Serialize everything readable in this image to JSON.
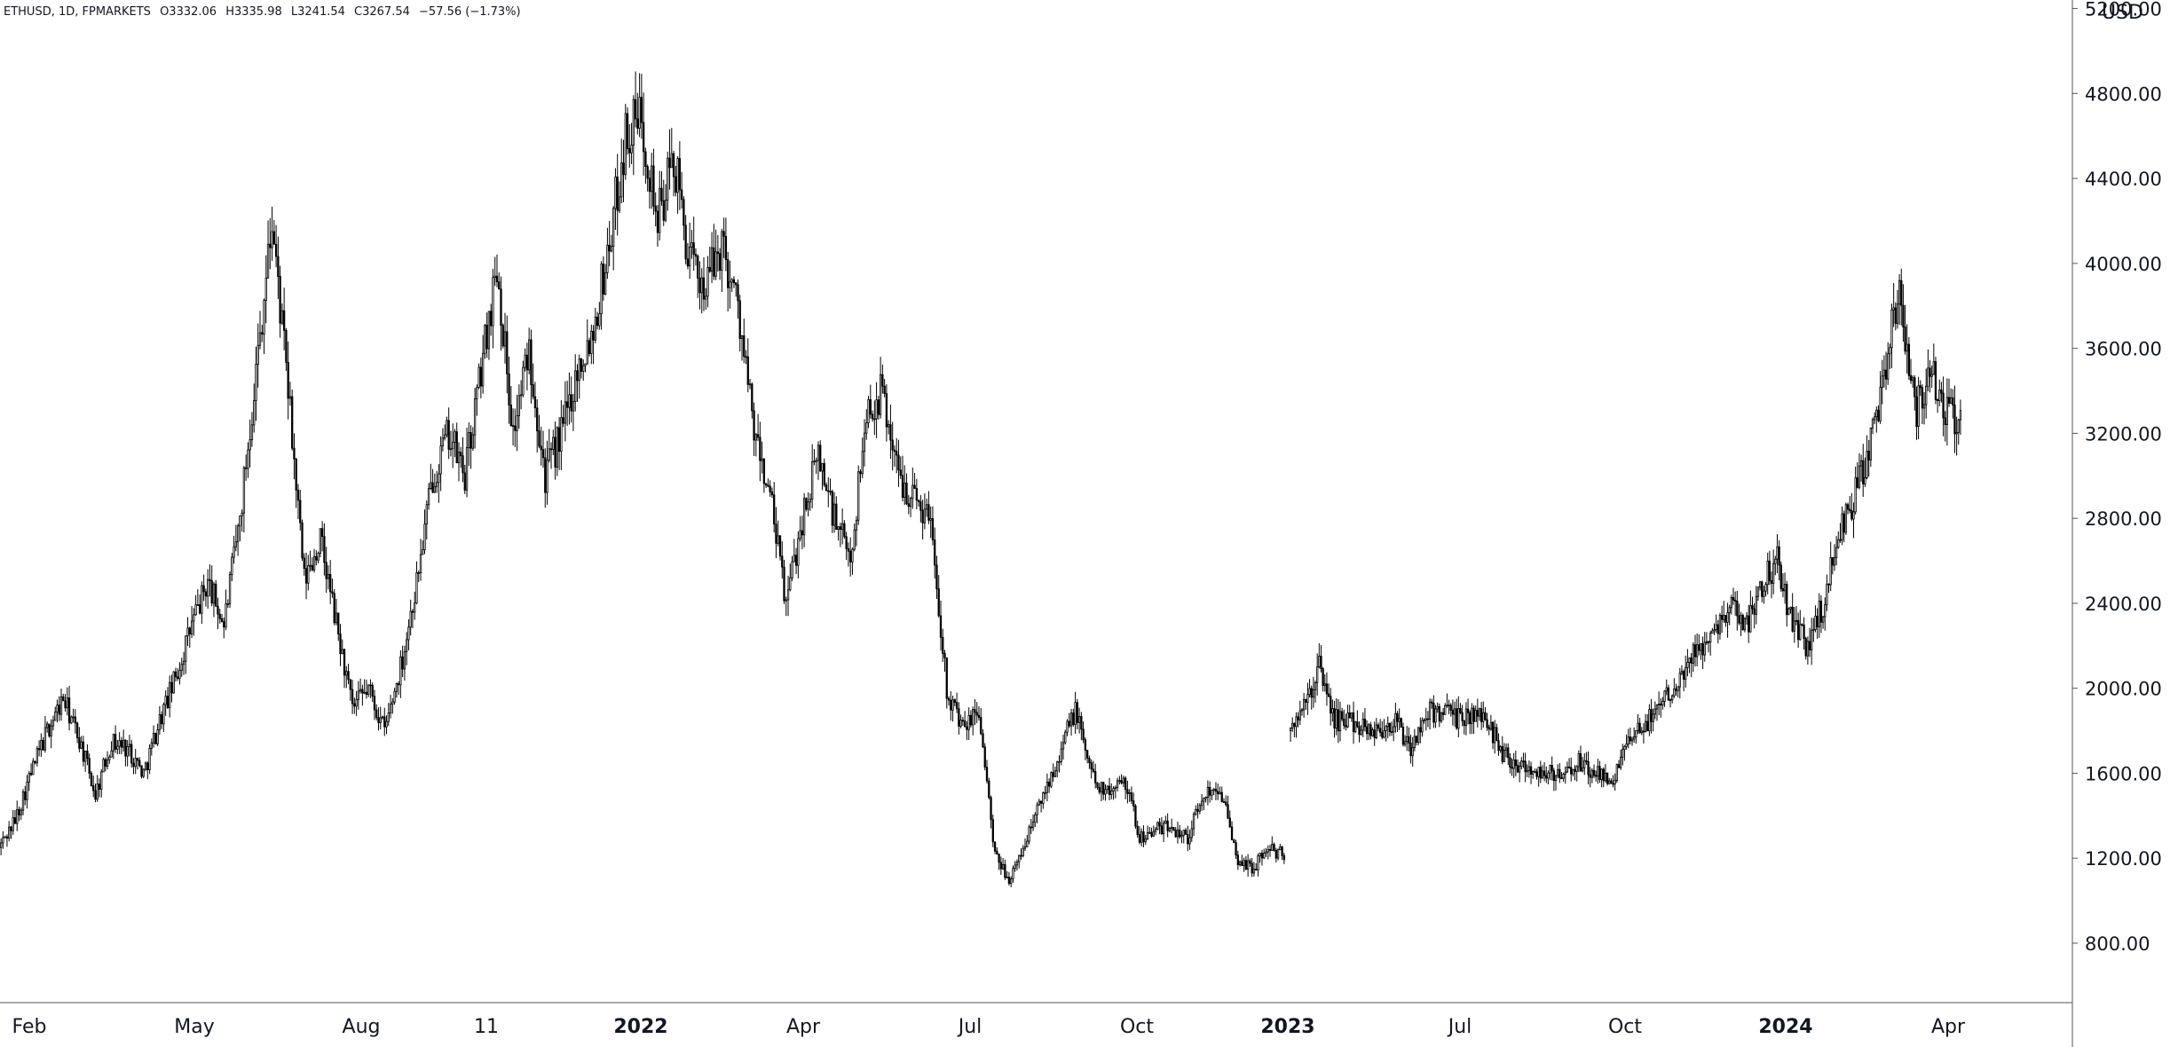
{
  "legend": {
    "symbol": "ETHUSD, 1D, FPMARKETS",
    "open": "O3332.06",
    "high": "H3335.98",
    "low": "L3241.54",
    "close": "C3267.54",
    "change": "−57.56 (−1.73%)"
  },
  "currency": "USD",
  "colors": {
    "background": "#ffffff",
    "candle_body": "#000000",
    "candle_wick": "#000000",
    "axis_line": "#555555",
    "text": "#131722"
  },
  "chart_data": {
    "type": "candlestick",
    "title": "",
    "xlabel": "",
    "ylabel": "",
    "ylim": [
      520,
      5240
    ],
    "y_ticks": [
      "800.00",
      "1200.00",
      "1600.00",
      "2000.00",
      "2400.00",
      "2800.00",
      "3200.00",
      "3600.00",
      "4000.00",
      "4400.00",
      "4800.00",
      "5200.00"
    ],
    "x_ticks": [
      {
        "label": "Feb",
        "bold": false
      },
      {
        "label": "May",
        "bold": false
      },
      {
        "label": "Aug",
        "bold": false
      },
      {
        "label": "11",
        "bold": false
      },
      {
        "label": "2022",
        "bold": true
      },
      {
        "label": "Apr",
        "bold": false
      },
      {
        "label": "Jul",
        "bold": false
      },
      {
        "label": "Oct",
        "bold": false
      },
      {
        "label": "2023",
        "bold": true
      },
      {
        "label": "Jul",
        "bold": false
      },
      {
        "label": "Oct",
        "bold": false
      },
      {
        "label": "2024",
        "bold": true
      },
      {
        "label": "Apr",
        "bold": false
      }
    ],
    "grid": false,
    "series": [
      {
        "segment": "2021-02 to 2022-12",
        "closes": [
          1250,
          1380,
          1600,
          1800,
          1950,
          1760,
          1500,
          1750,
          1720,
          1600,
          1850,
          2050,
          2300,
          2500,
          2300,
          2800,
          3500,
          4200,
          3400,
          2500,
          2700,
          2300,
          1900,
          2000,
          1800,
          2100,
          2500,
          3000,
          3200,
          3000,
          3500,
          4000,
          3200,
          3600,
          3000,
          3200,
          3500,
          3700,
          4100,
          4600,
          4700,
          4200,
          4500,
          4000,
          3900,
          4100,
          3800,
          3200,
          2900,
          2400,
          2800,
          3100,
          2800,
          2600,
          3300,
          3400,
          3000,
          2900,
          2800,
          2000,
          1800,
          1900,
          1200,
          1100,
          1300,
          1500,
          1700,
          1900,
          1600,
          1500,
          1600,
          1300,
          1330,
          1350,
          1300,
          1500,
          1550,
          1200,
          1150,
          1250,
          1210
        ]
      },
      {
        "segment": "2023-01 to 2024-04",
        "closes": [
          1800,
          1900,
          2100,
          1850,
          1850,
          1820,
          1800,
          1850,
          1700,
          1880,
          1900,
          1850,
          1880,
          1850,
          1700,
          1650,
          1620,
          1600,
          1580,
          1650,
          1600,
          1550,
          1700,
          1800,
          1900,
          2000,
          2100,
          2200,
          2300,
          2400,
          2300,
          2500,
          2600,
          2300,
          2200,
          2400,
          2700,
          2900,
          3100,
          3500,
          3900,
          3300,
          3500,
          3300,
          3268
        ]
      }
    ]
  }
}
